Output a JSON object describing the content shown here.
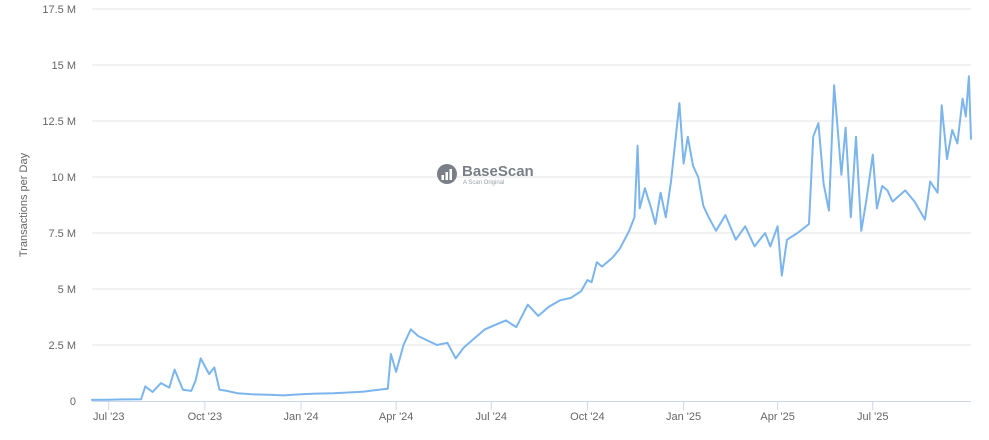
{
  "chart_data": {
    "type": "line",
    "title": "",
    "xlabel": "",
    "ylabel": "Transactions per Day",
    "ylim": [
      0,
      17500000
    ],
    "grid": true,
    "legend": "none",
    "line_color": "#7cb5ec",
    "y_ticks": [
      {
        "value": 0,
        "label": "0"
      },
      {
        "value": 2500000,
        "label": "2.5 M"
      },
      {
        "value": 5000000,
        "label": "5 M"
      },
      {
        "value": 7500000,
        "label": "7.5 M"
      },
      {
        "value": 10000000,
        "label": "10 M"
      },
      {
        "value": 12500000,
        "label": "12.5 M"
      },
      {
        "value": 15000000,
        "label": "15 M"
      },
      {
        "value": 17500000,
        "label": "17.5 M"
      }
    ],
    "x_range": [
      "2023-06-15",
      "2025-10-03"
    ],
    "x_ticks": [
      {
        "date": "2023-07-01",
        "label": "Jul '23"
      },
      {
        "date": "2023-10-01",
        "label": "Oct '23"
      },
      {
        "date": "2024-01-01",
        "label": "Jan '24"
      },
      {
        "date": "2024-04-01",
        "label": "Apr '24"
      },
      {
        "date": "2024-07-01",
        "label": "Jul '24"
      },
      {
        "date": "2024-10-01",
        "label": "Oct '24"
      },
      {
        "date": "2025-01-01",
        "label": "Jan '25"
      },
      {
        "date": "2025-04-01",
        "label": "Apr '25"
      },
      {
        "date": "2025-07-01",
        "label": "Jul '25"
      }
    ],
    "series": [
      {
        "x": [
          "2023-06-15",
          "2023-07-01",
          "2023-07-15",
          "2023-08-01",
          "2023-08-05",
          "2023-08-12",
          "2023-08-20",
          "2023-08-28",
          "2023-09-02",
          "2023-09-10",
          "2023-09-18",
          "2023-09-22",
          "2023-09-27",
          "2023-10-05",
          "2023-10-10",
          "2023-10-15",
          "2023-10-22",
          "2023-11-01",
          "2023-11-15",
          "2023-12-01",
          "2023-12-15",
          "2024-01-01",
          "2024-01-15",
          "2024-02-01",
          "2024-02-15",
          "2024-03-01",
          "2024-03-15",
          "2024-03-24",
          "2024-03-27",
          "2024-04-01",
          "2024-04-08",
          "2024-04-15",
          "2024-04-22",
          "2024-05-01",
          "2024-05-10",
          "2024-05-20",
          "2024-05-28",
          "2024-06-05",
          "2024-06-15",
          "2024-06-25",
          "2024-07-05",
          "2024-07-15",
          "2024-07-25",
          "2024-08-05",
          "2024-08-15",
          "2024-08-25",
          "2024-09-05",
          "2024-09-15",
          "2024-09-25",
          "2024-10-01",
          "2024-10-05",
          "2024-10-10",
          "2024-10-15",
          "2024-10-25",
          "2024-11-01",
          "2024-11-10",
          "2024-11-15",
          "2024-11-18",
          "2024-11-20",
          "2024-11-25",
          "2024-12-01",
          "2024-12-05",
          "2024-12-10",
          "2024-12-15",
          "2024-12-20",
          "2024-12-25",
          "2024-12-28",
          "2025-01-01",
          "2025-01-05",
          "2025-01-10",
          "2025-01-15",
          "2025-01-20",
          "2025-01-25",
          "2025-02-01",
          "2025-02-10",
          "2025-02-20",
          "2025-03-01",
          "2025-03-10",
          "2025-03-20",
          "2025-03-25",
          "2025-04-01",
          "2025-04-05",
          "2025-04-10",
          "2025-04-20",
          "2025-05-01",
          "2025-05-05",
          "2025-05-10",
          "2025-05-15",
          "2025-05-20",
          "2025-05-25",
          "2025-06-01",
          "2025-06-05",
          "2025-06-10",
          "2025-06-15",
          "2025-06-20",
          "2025-06-25",
          "2025-07-01",
          "2025-07-05",
          "2025-07-10",
          "2025-07-15",
          "2025-07-20",
          "2025-08-01",
          "2025-08-10",
          "2025-08-20",
          "2025-08-25",
          "2025-09-01",
          "2025-09-05",
          "2025-09-10",
          "2025-09-15",
          "2025-09-20",
          "2025-09-25",
          "2025-09-28",
          "2025-10-01",
          "2025-10-03"
        ],
        "y": [
          50000,
          60000,
          70000,
          80000,
          650000,
          400000,
          800000,
          600000,
          1400000,
          500000,
          450000,
          900000,
          1900000,
          1200000,
          1500000,
          500000,
          450000,
          350000,
          300000,
          280000,
          250000,
          300000,
          330000,
          350000,
          380000,
          420000,
          500000,
          550000,
          2100000,
          1300000,
          2500000,
          3200000,
          2900000,
          2700000,
          2500000,
          2600000,
          1900000,
          2400000,
          2800000,
          3200000,
          3400000,
          3600000,
          3300000,
          4300000,
          3800000,
          4200000,
          4500000,
          4600000,
          4900000,
          5400000,
          5300000,
          6200000,
          6000000,
          6400000,
          6800000,
          7600000,
          8200000,
          11400000,
          8600000,
          9500000,
          8600000,
          7900000,
          9300000,
          8200000,
          9800000,
          12000000,
          13300000,
          10600000,
          11800000,
          10500000,
          10000000,
          8700000,
          8200000,
          7600000,
          8300000,
          7200000,
          7800000,
          6900000,
          7500000,
          6900000,
          7800000,
          5600000,
          7200000,
          7500000,
          7900000,
          11800000,
          12400000,
          9700000,
          8500000,
          14100000,
          10100000,
          12200000,
          8200000,
          11800000,
          7600000,
          9000000,
          11000000,
          8600000,
          9600000,
          9400000,
          8900000,
          9400000,
          8900000,
          8100000,
          9800000,
          9300000,
          13200000,
          10800000,
          12100000,
          11500000,
          13500000,
          12700000,
          14500000,
          11700000
        ]
      }
    ],
    "watermark": {
      "title": "BaseScan",
      "subtitle": "A Scan Original"
    }
  }
}
